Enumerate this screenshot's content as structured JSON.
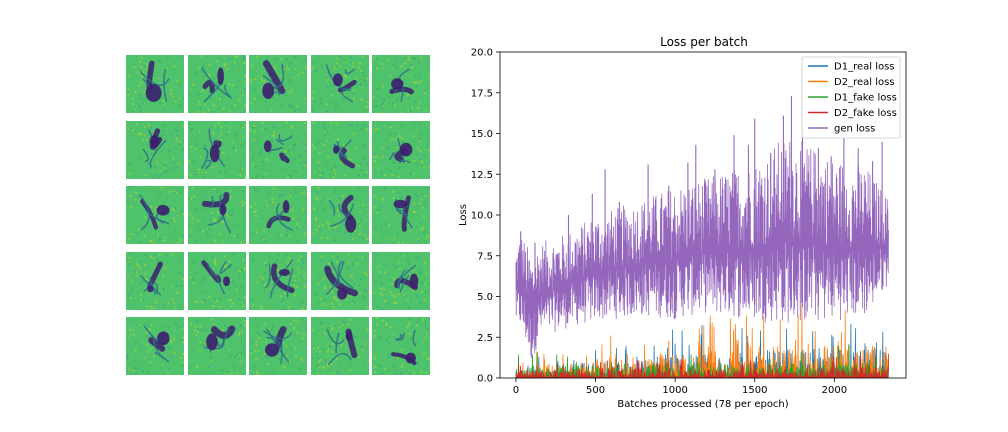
{
  "samples_grid": {
    "rows": 5,
    "cols": 5,
    "palette": {
      "background": "#4fc26c",
      "ink": "#3b1f6e",
      "noise": "#9fd43b"
    }
  },
  "chart_data": {
    "type": "line",
    "title": "Loss per batch",
    "xlabel": "Batches processed (78 per epoch)",
    "ylabel": "Loss",
    "xlim": [
      -100,
      2450
    ],
    "ylim": [
      0,
      20
    ],
    "xticks": [
      0,
      500,
      1000,
      1500,
      2000
    ],
    "yticks": [
      0.0,
      2.5,
      5.0,
      7.5,
      10.0,
      12.5,
      15.0,
      17.5,
      20.0
    ],
    "grid": false,
    "legend_position": "top-right",
    "x_range": [
      0,
      2340
    ],
    "series": [
      {
        "name": "D1_real loss",
        "color": "#1f77b4",
        "envelope_x": [
          0,
          200,
          500,
          800,
          1100,
          1400,
          1700,
          2000,
          2340
        ],
        "low": [
          0.0,
          0.0,
          0.0,
          0.0,
          0.0,
          0.0,
          0.0,
          0.0,
          0.0
        ],
        "high": [
          1.0,
          1.6,
          2.2,
          2.8,
          3.2,
          3.6,
          4.0,
          4.1,
          4.0
        ]
      },
      {
        "name": "D2_real loss",
        "color": "#ff7f0e",
        "envelope_x": [
          0,
          200,
          500,
          800,
          1100,
          1400,
          1700,
          2000,
          2340
        ],
        "low": [
          0.0,
          0.0,
          0.0,
          0.0,
          0.0,
          0.0,
          0.0,
          0.0,
          0.0
        ],
        "high": [
          1.2,
          1.8,
          2.4,
          3.0,
          3.6,
          4.2,
          4.6,
          4.6,
          4.4
        ]
      },
      {
        "name": "D1_fake loss",
        "color": "#2ca02c",
        "envelope_x": [
          0,
          200,
          500,
          800,
          1100,
          1400,
          1700,
          2000,
          2340
        ],
        "low": [
          0.0,
          0.0,
          0.0,
          0.0,
          0.0,
          0.0,
          0.0,
          0.0,
          0.0
        ],
        "high": [
          1.4,
          2.0,
          1.8,
          1.9,
          2.0,
          2.0,
          2.1,
          2.1,
          2.0
        ]
      },
      {
        "name": "D2_fake loss",
        "color": "#d62728",
        "envelope_x": [
          0,
          200,
          500,
          800,
          1100,
          1400,
          1700,
          2000,
          2340
        ],
        "low": [
          0.0,
          0.0,
          0.0,
          0.0,
          0.0,
          0.0,
          0.0,
          0.0,
          0.0
        ],
        "high": [
          1.0,
          1.1,
          1.1,
          1.2,
          1.2,
          1.3,
          1.3,
          1.5,
          1.6
        ]
      },
      {
        "name": "gen loss",
        "color": "#9467bd",
        "envelope_x": [
          0,
          30,
          100,
          150,
          300,
          500,
          800,
          1000,
          1200,
          1500,
          1700,
          2000,
          2200,
          2340
        ],
        "low": [
          3.2,
          3.0,
          0.9,
          2.5,
          3.0,
          3.5,
          3.8,
          3.6,
          4.0,
          3.5,
          3.3,
          3.5,
          3.8,
          5.8
        ],
        "high": [
          8.0,
          9.0,
          7.5,
          8.3,
          8.8,
          10.0,
          11.0,
          11.8,
          12.3,
          13.3,
          15.0,
          13.5,
          13.0,
          11.0
        ],
        "spikes": [
          [
            30,
            9.0
          ],
          [
            120,
            8.3
          ],
          [
            330,
            10.0
          ],
          [
            480,
            11.3
          ],
          [
            560,
            12.8
          ],
          [
            650,
            10.8
          ],
          [
            830,
            13.1
          ],
          [
            960,
            11.8
          ],
          [
            1080,
            13.2
          ],
          [
            1130,
            14.3
          ],
          [
            1250,
            12.8
          ],
          [
            1370,
            14.9
          ],
          [
            1460,
            14.3
          ],
          [
            1500,
            15.9
          ],
          [
            1600,
            13.8
          ],
          [
            1680,
            16.1
          ],
          [
            1730,
            17.3
          ],
          [
            1800,
            15.2
          ],
          [
            1900,
            14.1
          ],
          [
            1980,
            13.6
          ],
          [
            2060,
            14.7
          ],
          [
            2150,
            14.1
          ],
          [
            2240,
            13.3
          ],
          [
            2300,
            14.5
          ]
        ]
      }
    ]
  }
}
